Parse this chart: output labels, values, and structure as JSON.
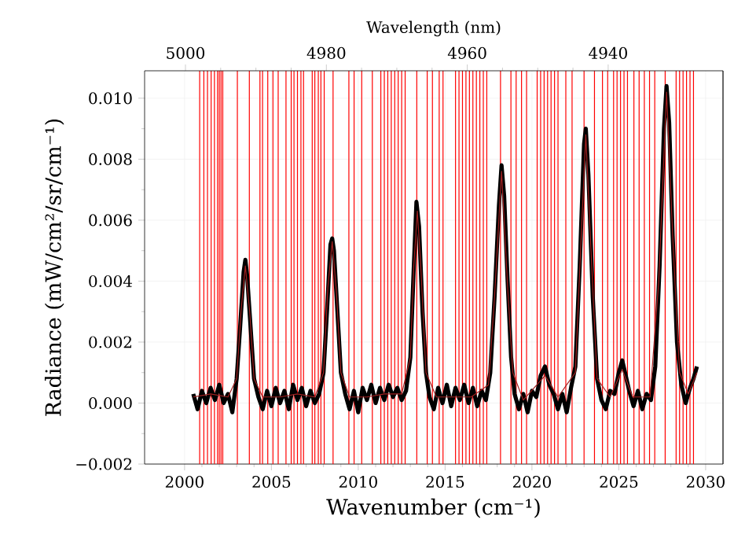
{
  "chart_data": {
    "type": "line",
    "xlabel": "Wavenumber (cm⁻¹)",
    "ylabel": "Radiance (mW/cm²/sr/cm⁻¹)",
    "x2label": "Wavelength (nm)",
    "xlim": [
      1997.7,
      2031.0
    ],
    "xticks": [
      2000,
      2005,
      2010,
      2015,
      2020,
      2025,
      2030
    ],
    "x2lim": [
      5005.8,
      4923.7
    ],
    "x2ticks": [
      5000,
      4980,
      4960,
      4940
    ],
    "ylim": [
      -0.002,
      0.0109
    ],
    "yticks": [
      {
        "value": -0.002,
        "label": "−0.002"
      },
      {
        "value": 0.0,
        "label": "0.000"
      },
      {
        "value": 0.002,
        "label": "0.002"
      },
      {
        "value": 0.004,
        "label": "0.004"
      },
      {
        "value": 0.006,
        "label": "0.006"
      },
      {
        "value": 0.008,
        "label": "0.008"
      },
      {
        "value": 0.01,
        "label": "0.010"
      }
    ],
    "grid": true,
    "series": [
      {
        "color": "#000000",
        "x": [
          2000.5,
          2000.75,
          2001,
          2001.25,
          2001.5,
          2001.75,
          2002,
          2002.25,
          2002.5,
          2002.75,
          2003,
          2003.2,
          2003.4,
          2003.5,
          2003.6,
          2003.8,
          2004,
          2004.25,
          2004.5,
          2004.75,
          2005,
          2005.25,
          2005.5,
          2005.75,
          2006,
          2006.25,
          2006.5,
          2006.75,
          2007,
          2007.25,
          2007.5,
          2007.75,
          2008,
          2008.2,
          2008.4,
          2008.5,
          2008.6,
          2008.8,
          2009,
          2009.25,
          2009.5,
          2009.75,
          2010,
          2010.25,
          2010.5,
          2010.75,
          2011,
          2011.25,
          2011.5,
          2011.75,
          2012,
          2012.25,
          2012.5,
          2012.75,
          2013,
          2013.2,
          2013.35,
          2013.5,
          2013.7,
          2013.9,
          2014.1,
          2014.35,
          2014.6,
          2014.85,
          2015.1,
          2015.35,
          2015.6,
          2015.85,
          2016.1,
          2016.35,
          2016.6,
          2016.85,
          2017.1,
          2017.35,
          2017.6,
          2017.85,
          2018.1,
          2018.25,
          2018.4,
          2018.6,
          2018.8,
          2019,
          2019.25,
          2019.5,
          2019.75,
          2020,
          2020.25,
          2020.5,
          2020.75,
          2021,
          2021.25,
          2021.5,
          2021.75,
          2022,
          2022.25,
          2022.5,
          2022.75,
          2023,
          2023.1,
          2023.25,
          2023.5,
          2023.75,
          2024,
          2024.25,
          2024.5,
          2024.75,
          2025,
          2025.2,
          2025.4,
          2025.6,
          2025.85,
          2026.1,
          2026.35,
          2026.6,
          2026.85,
          2027.1,
          2027.35,
          2027.6,
          2027.75,
          2027.9,
          2028.1,
          2028.35,
          2028.6,
          2028.85,
          2029.1,
          2029.3,
          2029.5
        ],
        "values": [
          0.0003,
          -0.0002,
          0.0004,
          0.0,
          0.0005,
          0.0001,
          0.0006,
          0.0,
          0.0003,
          -0.0003,
          0.0008,
          0.0025,
          0.0043,
          0.0047,
          0.0042,
          0.0025,
          0.0008,
          0.0002,
          -0.0002,
          0.0004,
          -0.0001,
          0.0005,
          0.0,
          0.0004,
          -0.0002,
          0.0006,
          0.0001,
          0.0005,
          -0.0001,
          0.0004,
          0.0,
          0.0003,
          0.001,
          0.003,
          0.0052,
          0.0054,
          0.005,
          0.003,
          0.001,
          0.0003,
          -0.0002,
          0.0004,
          -0.0003,
          0.0005,
          0.0001,
          0.0006,
          0.0,
          0.0005,
          0.0001,
          0.0006,
          0.0002,
          0.0005,
          0.0001,
          0.0004,
          0.0015,
          0.0045,
          0.0066,
          0.0058,
          0.003,
          0.001,
          0.0002,
          -0.0002,
          0.0005,
          0.0,
          0.0006,
          -0.0001,
          0.0005,
          0.0001,
          0.0006,
          0.0,
          0.0005,
          -0.0001,
          0.0004,
          0.0001,
          0.001,
          0.0035,
          0.0065,
          0.0078,
          0.0068,
          0.004,
          0.0015,
          0.0003,
          -0.0002,
          0.0003,
          -0.0003,
          0.0004,
          0.0002,
          0.0009,
          0.0012,
          0.0006,
          0.0003,
          -0.0002,
          0.0003,
          -0.0003,
          0.0005,
          0.0012,
          0.0045,
          0.0085,
          0.009,
          0.0075,
          0.0035,
          0.0008,
          0.0001,
          -0.0002,
          0.0004,
          0.0003,
          0.001,
          0.0014,
          0.0009,
          0.0004,
          -0.0001,
          0.0004,
          -0.0002,
          0.0003,
          0.0001,
          0.0012,
          0.0045,
          0.009,
          0.0104,
          0.0092,
          0.0055,
          0.002,
          0.0006,
          0.0,
          0.0005,
          0.0008,
          0.0012
        ]
      },
      {
        "color": "#a02020",
        "x": [
          2000.5,
          2001.5,
          2002.5,
          2003,
          2003.25,
          2003.5,
          2003.75,
          2004,
          2004.5,
          2005.5,
          2006.5,
          2007.5,
          2008,
          2008.25,
          2008.5,
          2008.75,
          2009,
          2009.5,
          2010.5,
          2011.5,
          2012.5,
          2013,
          2013.2,
          2013.4,
          2013.6,
          2013.9,
          2014.5,
          2015.5,
          2016.5,
          2017.5,
          2017.85,
          2018.25,
          2018.6,
          2018.9,
          2019.5,
          2020.75,
          2021.5,
          2022.5,
          2022.8,
          2023.1,
          2023.4,
          2023.75,
          2024.5,
          2025.2,
          2025.8,
          2026.8,
          2027.3,
          2027.75,
          2028.1,
          2028.5,
          2029,
          2029.5
        ],
        "values": [
          0.0002,
          0.0003,
          0.0002,
          0.0008,
          0.003,
          0.0045,
          0.003,
          0.0008,
          0.0002,
          0.0002,
          0.0003,
          0.0002,
          0.001,
          0.0038,
          0.0053,
          0.0036,
          0.001,
          0.0002,
          0.0002,
          0.0003,
          0.0003,
          0.0015,
          0.0045,
          0.0063,
          0.0045,
          0.001,
          0.0002,
          0.0002,
          0.0002,
          0.0006,
          0.0035,
          0.0076,
          0.0038,
          0.001,
          0.0001,
          0.0009,
          0.0002,
          0.001,
          0.005,
          0.0088,
          0.005,
          0.0008,
          0.0002,
          0.0011,
          0.0002,
          0.0002,
          0.004,
          0.0102,
          0.0055,
          0.001,
          0.0003,
          0.001
        ]
      }
    ],
    "ref_lines": [
      {
        "axis": "x",
        "value": 2000.87,
        "color": "#ff0000"
      },
      {
        "axis": "x",
        "value": 2001.11,
        "color": "#ff0000"
      },
      {
        "axis": "x",
        "value": 2001.32,
        "color": "#ff0000"
      },
      {
        "axis": "x",
        "value": 2001.53,
        "color": "#ff0000"
      },
      {
        "axis": "x",
        "value": 2001.72,
        "color": "#ff0000"
      },
      {
        "axis": "x",
        "value": 2001.9,
        "color": "#ff0000"
      },
      {
        "axis": "x",
        "value": 2002.0,
        "color": "#ff0000"
      },
      {
        "axis": "x",
        "value": 2002.1,
        "color": "#ff0000"
      },
      {
        "axis": "x",
        "value": 2002.2,
        "color": "#ff0000"
      },
      {
        "axis": "x",
        "value": 2003.04,
        "color": "#ff0000"
      },
      {
        "axis": "x",
        "value": 2003.73,
        "color": "#ff0000"
      },
      {
        "axis": "x",
        "value": 2004.34,
        "color": "#ff0000"
      },
      {
        "axis": "x",
        "value": 2004.49,
        "color": "#ff0000"
      },
      {
        "axis": "x",
        "value": 2004.79,
        "color": "#ff0000"
      },
      {
        "axis": "x",
        "value": 2005.09,
        "color": "#ff0000"
      },
      {
        "axis": "x",
        "value": 2005.39,
        "color": "#ff0000"
      },
      {
        "axis": "x",
        "value": 2005.84,
        "color": "#ff0000"
      },
      {
        "axis": "x",
        "value": 2006.14,
        "color": "#ff0000"
      },
      {
        "axis": "x",
        "value": 2006.3,
        "color": "#ff0000"
      },
      {
        "axis": "x",
        "value": 2006.5,
        "color": "#ff0000"
      },
      {
        "axis": "x",
        "value": 2006.7,
        "color": "#ff0000"
      },
      {
        "axis": "x",
        "value": 2006.85,
        "color": "#ff0000"
      },
      {
        "axis": "x",
        "value": 2007.35,
        "color": "#ff0000"
      },
      {
        "axis": "x",
        "value": 2007.5,
        "color": "#ff0000"
      },
      {
        "axis": "x",
        "value": 2007.7,
        "color": "#ff0000"
      },
      {
        "axis": "x",
        "value": 2007.85,
        "color": "#ff0000"
      },
      {
        "axis": "x",
        "value": 2008.04,
        "color": "#ff0000"
      },
      {
        "axis": "x",
        "value": 2008.55,
        "color": "#ff0000"
      },
      {
        "axis": "x",
        "value": 2009.46,
        "color": "#ff0000"
      },
      {
        "axis": "x",
        "value": 2009.76,
        "color": "#ff0000"
      },
      {
        "axis": "x",
        "value": 2010.2,
        "color": "#ff0000"
      },
      {
        "axis": "x",
        "value": 2010.81,
        "color": "#ff0000"
      },
      {
        "axis": "x",
        "value": 2011.3,
        "color": "#ff0000"
      },
      {
        "axis": "x",
        "value": 2011.5,
        "color": "#ff0000"
      },
      {
        "axis": "x",
        "value": 2011.7,
        "color": "#ff0000"
      },
      {
        "axis": "x",
        "value": 2011.9,
        "color": "#ff0000"
      },
      {
        "axis": "x",
        "value": 2012.1,
        "color": "#ff0000"
      },
      {
        "axis": "x",
        "value": 2012.3,
        "color": "#ff0000"
      },
      {
        "axis": "x",
        "value": 2012.5,
        "color": "#ff0000"
      },
      {
        "axis": "x",
        "value": 2012.7,
        "color": "#ff0000"
      },
      {
        "axis": "x",
        "value": 2013.37,
        "color": "#ff0000"
      },
      {
        "axis": "x",
        "value": 2013.97,
        "color": "#ff0000"
      },
      {
        "axis": "x",
        "value": 2014.27,
        "color": "#ff0000"
      },
      {
        "axis": "x",
        "value": 2014.66,
        "color": "#ff0000"
      },
      {
        "axis": "x",
        "value": 2014.88,
        "color": "#ff0000"
      },
      {
        "axis": "x",
        "value": 2015.6,
        "color": "#ff0000"
      },
      {
        "axis": "x",
        "value": 2015.8,
        "color": "#ff0000"
      },
      {
        "axis": "x",
        "value": 2016.0,
        "color": "#ff0000"
      },
      {
        "axis": "x",
        "value": 2016.2,
        "color": "#ff0000"
      },
      {
        "axis": "x",
        "value": 2016.4,
        "color": "#ff0000"
      },
      {
        "axis": "x",
        "value": 2016.6,
        "color": "#ff0000"
      },
      {
        "axis": "x",
        "value": 2016.8,
        "color": "#ff0000"
      },
      {
        "axis": "x",
        "value": 2017.0,
        "color": "#ff0000"
      },
      {
        "axis": "x",
        "value": 2017.2,
        "color": "#ff0000"
      },
      {
        "axis": "x",
        "value": 2017.4,
        "color": "#ff0000"
      },
      {
        "axis": "x",
        "value": 2018.19,
        "color": "#ff0000"
      },
      {
        "axis": "x",
        "value": 2018.79,
        "color": "#ff0000"
      },
      {
        "axis": "x",
        "value": 2019.09,
        "color": "#ff0000"
      },
      {
        "axis": "x",
        "value": 2019.4,
        "color": "#ff0000"
      },
      {
        "axis": "x",
        "value": 2019.69,
        "color": "#ff0000"
      },
      {
        "axis": "x",
        "value": 2020.3,
        "color": "#ff0000"
      },
      {
        "axis": "x",
        "value": 2020.5,
        "color": "#ff0000"
      },
      {
        "axis": "x",
        "value": 2020.7,
        "color": "#ff0000"
      },
      {
        "axis": "x",
        "value": 2020.9,
        "color": "#ff0000"
      },
      {
        "axis": "x",
        "value": 2021.1,
        "color": "#ff0000"
      },
      {
        "axis": "x",
        "value": 2021.3,
        "color": "#ff0000"
      },
      {
        "axis": "x",
        "value": 2021.5,
        "color": "#ff0000"
      },
      {
        "axis": "x",
        "value": 2021.95,
        "color": "#ff0000"
      },
      {
        "axis": "x",
        "value": 2022.31,
        "color": "#ff0000"
      },
      {
        "axis": "x",
        "value": 2023.0,
        "color": "#ff0000"
      },
      {
        "axis": "x",
        "value": 2023.6,
        "color": "#ff0000"
      },
      {
        "axis": "x",
        "value": 2024.06,
        "color": "#ff0000"
      },
      {
        "axis": "x",
        "value": 2024.36,
        "color": "#ff0000"
      },
      {
        "axis": "x",
        "value": 2024.7,
        "color": "#ff0000"
      },
      {
        "axis": "x",
        "value": 2024.9,
        "color": "#ff0000"
      },
      {
        "axis": "x",
        "value": 2025.1,
        "color": "#ff0000"
      },
      {
        "axis": "x",
        "value": 2025.3,
        "color": "#ff0000"
      },
      {
        "axis": "x",
        "value": 2025.5,
        "color": "#ff0000"
      },
      {
        "axis": "x",
        "value": 2025.87,
        "color": "#ff0000"
      },
      {
        "axis": "x",
        "value": 2026.17,
        "color": "#ff0000"
      },
      {
        "axis": "x",
        "value": 2026.47,
        "color": "#ff0000"
      },
      {
        "axis": "x",
        "value": 2026.77,
        "color": "#ff0000"
      },
      {
        "axis": "x",
        "value": 2027.07,
        "color": "#ff0000"
      },
      {
        "axis": "x",
        "value": 2027.67,
        "color": "#ff0000"
      },
      {
        "axis": "x",
        "value": 2028.3,
        "color": "#ff0000"
      },
      {
        "axis": "x",
        "value": 2028.5,
        "color": "#ff0000"
      },
      {
        "axis": "x",
        "value": 2028.7,
        "color": "#ff0000"
      },
      {
        "axis": "x",
        "value": 2028.9,
        "color": "#ff0000"
      },
      {
        "axis": "x",
        "value": 2029.1,
        "color": "#ff0000"
      },
      {
        "axis": "x",
        "value": 2029.3,
        "color": "#ff0000"
      }
    ]
  }
}
